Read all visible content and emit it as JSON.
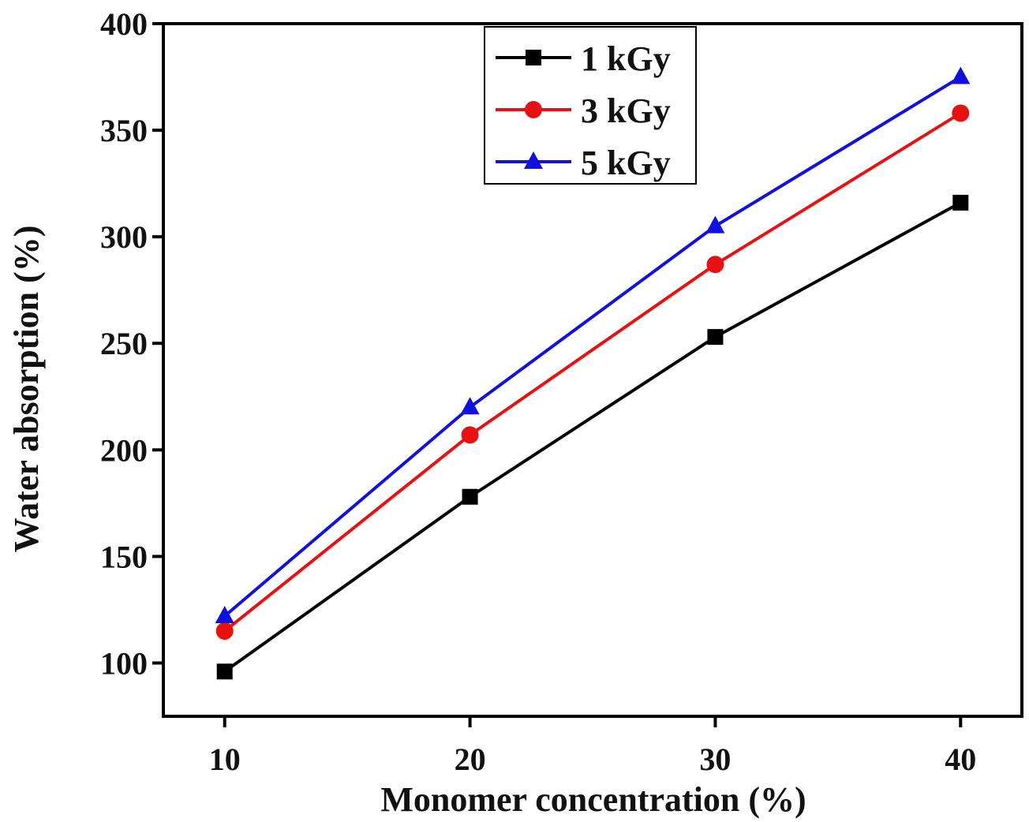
{
  "chart_data": {
    "type": "line",
    "xlabel": "Monomer concentration (%)",
    "ylabel": "Water absorption (%)",
    "x": [
      10,
      20,
      30,
      40
    ],
    "x_ticks": [
      10,
      20,
      30,
      40
    ],
    "y_ticks": [
      100,
      150,
      200,
      250,
      300,
      350,
      400
    ],
    "xlim": [
      7.5,
      42.5
    ],
    "ylim": [
      75,
      400
    ],
    "grid": false,
    "legend_position": "top-right",
    "series": [
      {
        "name": "1 kGy",
        "color": "#000000",
        "marker": "square",
        "values": [
          96,
          178,
          253,
          316
        ]
      },
      {
        "name": "3 kGy",
        "color": "#e81010",
        "marker": "circle",
        "values": [
          115,
          207,
          287,
          358
        ]
      },
      {
        "name": "5 kGy",
        "color": "#1010e0",
        "marker": "triangle",
        "values": [
          122,
          220,
          305,
          375
        ]
      }
    ]
  }
}
